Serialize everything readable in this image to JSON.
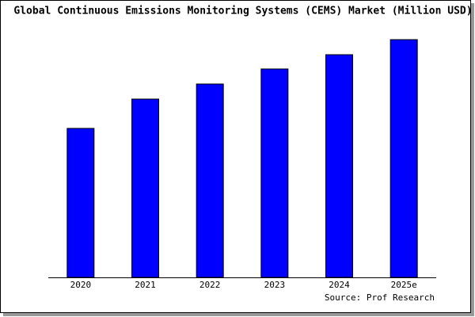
{
  "chart_data": {
    "type": "bar",
    "title": "Global Continuous Emissions Monitoring Systems (CEMS) Market (Million USD)",
    "source": "Source: Prof Research",
    "categories": [
      "2020",
      "2021",
      "2022",
      "2023",
      "2024",
      "2025e"
    ],
    "values": [
      188,
      225,
      244,
      263,
      281,
      300
    ],
    "color": "#0000ff",
    "ylim": [
      0,
      300
    ]
  }
}
